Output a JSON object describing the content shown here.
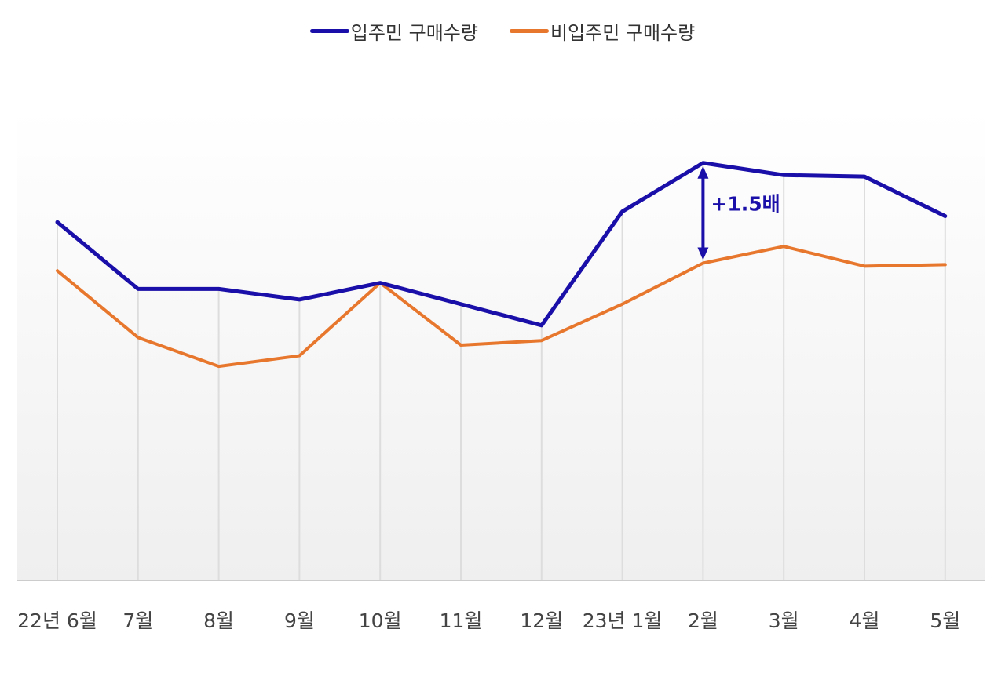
{
  "chart_data": {
    "type": "line",
    "categories": [
      "22년 6월",
      "7월",
      "8월",
      "9월",
      "10월",
      "11월",
      "12월",
      "23년 1월",
      "2월",
      "3월",
      "4월",
      "5월"
    ],
    "series": [
      {
        "name": "입주민 구매수량",
        "color": "#1a0fa8",
        "values": [
          78,
          56,
          56,
          52.5,
          58,
          51,
          44,
          81.5,
          97.5,
          93.5,
          93,
          80
        ]
      },
      {
        "name": "비입주민 구매수량",
        "color": "#e8772e",
        "values": [
          62,
          40,
          30.5,
          34,
          58,
          37.5,
          39,
          51,
          64.5,
          70,
          63.5,
          64
        ]
      }
    ],
    "ylim": [
      -40,
      115
    ],
    "grid": "vertical",
    "legend_position": "top-center",
    "annotations": [
      {
        "text": "+1.5배",
        "category": "2월",
        "from_series": 1,
        "to_series": 0,
        "color": "#1a0fa8"
      }
    ]
  }
}
